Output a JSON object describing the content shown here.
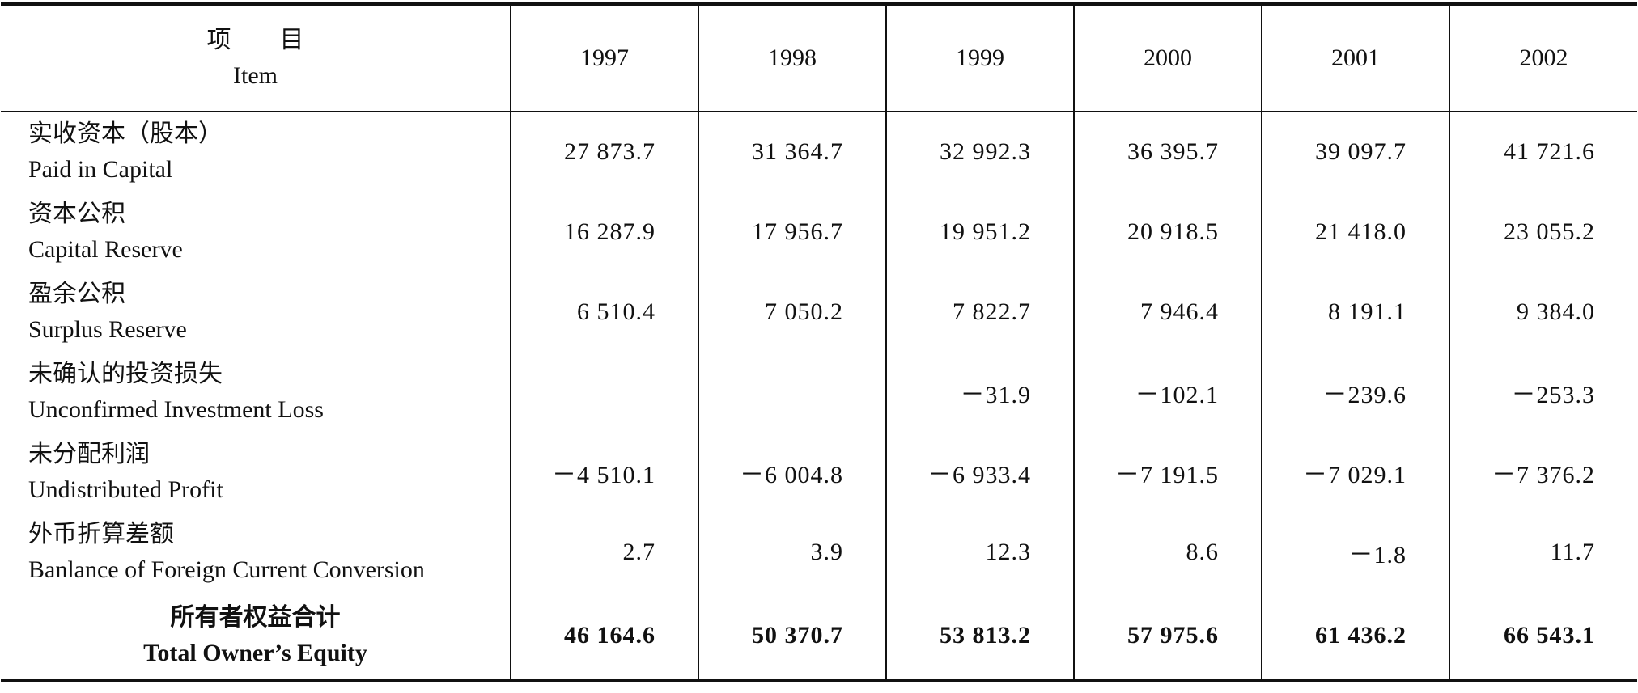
{
  "table": {
    "header": {
      "item_cn": "项　　目",
      "item_en": "Item",
      "years": [
        "1997",
        "1998",
        "1999",
        "2000",
        "2001",
        "2002"
      ]
    },
    "rows": [
      {
        "cn": "实收资本（股本）",
        "en": "Paid in Capital",
        "values": [
          "27 873.7",
          "31 364.7",
          "32 992.3",
          "36 395.7",
          "39 097.7",
          "41 721.6"
        ]
      },
      {
        "cn": "资本公积",
        "en": "Capital Reserve",
        "values": [
          "16 287.9",
          "17 956.7",
          "19 951.2",
          "20 918.5",
          "21 418.0",
          "23 055.2"
        ]
      },
      {
        "cn": "盈余公积",
        "en": "Surplus Reserve",
        "values": [
          "6 510.4",
          "7 050.2",
          "7 822.7",
          "7 946.4",
          "8 191.1",
          "9 384.0"
        ]
      },
      {
        "cn": "未确认的投资损失",
        "en": "Unconfirmed Investment Loss",
        "values": [
          null,
          null,
          "－31.9",
          "－102.1",
          "－239.6",
          "－253.3"
        ]
      },
      {
        "cn": "未分配利润",
        "en": "Undistributed Profit",
        "values": [
          "－4 510.1",
          "－6 004.8",
          "－6 933.4",
          "－7 191.5",
          "－7 029.1",
          "－7 376.2"
        ]
      },
      {
        "cn": "外币折算差额",
        "en": "Banlance of Foreign Current Conversion",
        "values": [
          "2.7",
          "3.9",
          "12.3",
          "8.6",
          "－1.8",
          "11.7"
        ]
      }
    ],
    "total": {
      "cn": "所有者权益合计",
      "en": "Total Owner’s Equity",
      "values": [
        "46 164.6",
        "50 370.7",
        "53 813.2",
        "57 975.6",
        "61 436.2",
        "66 543.1"
      ]
    }
  }
}
